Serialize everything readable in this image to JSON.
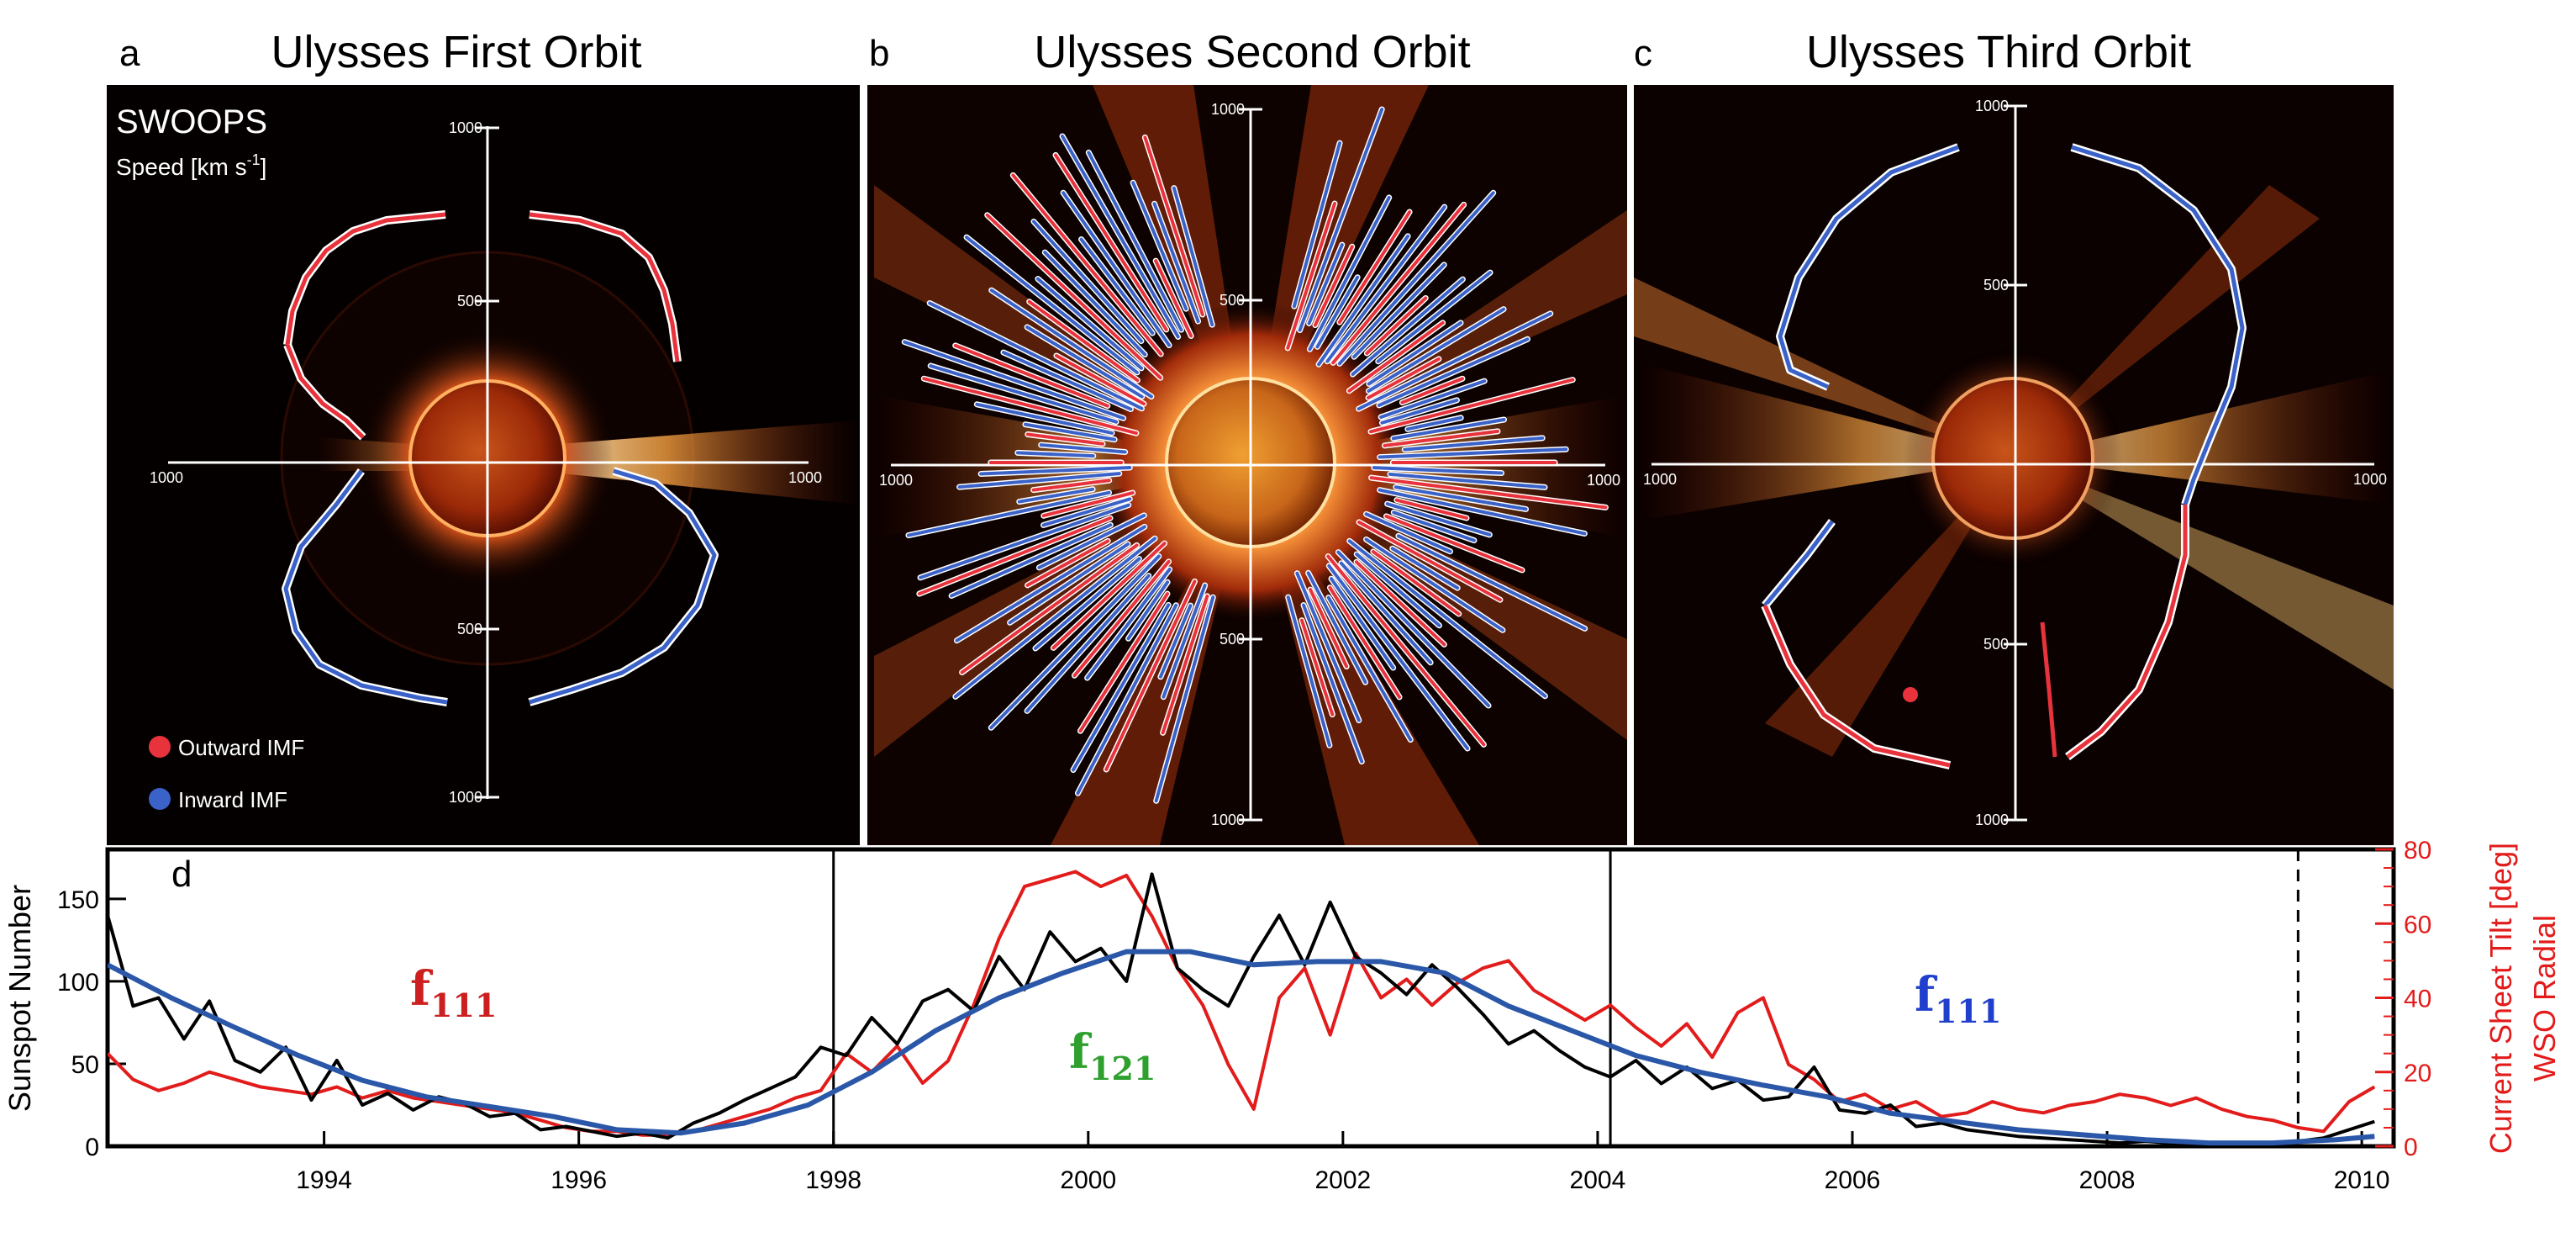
{
  "panels": [
    {
      "letter": "a",
      "title": "Ulysses First Orbit"
    },
    {
      "letter": "b",
      "title": "Ulysses Second Orbit"
    },
    {
      "letter": "c",
      "title": "Ulysses Third Orbit"
    }
  ],
  "polar": {
    "instrument": "SWOOPS",
    "speed_label": "Speed [km s",
    "speed_exp": "-1",
    "speed_close": "]",
    "tick_outer": "1000",
    "tick_inner": "500",
    "legend_outward": "Outward IMF",
    "legend_inward": "Inward IMF",
    "color_outward": "#e8323c",
    "color_inward": "#3a62c8"
  },
  "timeseries": {
    "letter": "d",
    "ylabel_left": "Sunspot Number",
    "ylabel_right_1": "Current Sheet Tilt [deg]",
    "ylabel_right_2": "WSO Radial",
    "labels": [
      {
        "base": "f",
        "sub": "111",
        "color": "#cc1f1f"
      },
      {
        "base": "f",
        "sub": "121",
        "color": "#2ea02e"
      },
      {
        "base": "f",
        "sub": "111",
        "color": "#1f3fcc"
      }
    ]
  },
  "chart_data": {
    "type": "line",
    "title": "",
    "xlabel": "",
    "xlim": [
      1992.3,
      2010.25
    ],
    "ylim_left": [
      0,
      180
    ],
    "ylim_right": [
      0,
      80
    ],
    "x_ticks": [
      1994,
      1996,
      1998,
      2000,
      2002,
      2004,
      2006,
      2008,
      2010
    ],
    "x_tick_labels": [
      "1994",
      "1996",
      "1998",
      "2000",
      "2002",
      "2004",
      "2006",
      "2008",
      "2010"
    ],
    "y_left_ticks": [
      0,
      50,
      100,
      150
    ],
    "y_left_tick_labels": [
      "0",
      "50",
      "100",
      "150"
    ],
    "y_right_ticks": [
      0,
      20,
      40,
      60,
      80
    ],
    "y_right_tick_labels": [
      "0",
      "20",
      "40",
      "60",
      "80"
    ],
    "orbit_boundaries": [
      1998.0,
      2004.1
    ],
    "dashed_marker": 2009.5,
    "series": [
      {
        "name": "Sunspot Number (monthly)",
        "axis": "left",
        "color": "#000000",
        "x": [
          1992.3,
          1992.5,
          1992.7,
          1992.9,
          1993.1,
          1993.3,
          1993.5,
          1993.7,
          1993.9,
          1994.1,
          1994.3,
          1994.5,
          1994.7,
          1994.9,
          1995.1,
          1995.3,
          1995.5,
          1995.7,
          1995.9,
          1996.1,
          1996.3,
          1996.5,
          1996.7,
          1996.9,
          1997.1,
          1997.3,
          1997.5,
          1997.7,
          1997.9,
          1998.1,
          1998.3,
          1998.5,
          1998.7,
          1998.9,
          1999.1,
          1999.3,
          1999.5,
          1999.7,
          1999.9,
          2000.1,
          2000.3,
          2000.5,
          2000.7,
          2000.9,
          2001.1,
          2001.3,
          2001.5,
          2001.7,
          2001.9,
          2002.1,
          2002.3,
          2002.5,
          2002.7,
          2002.9,
          2003.1,
          2003.3,
          2003.5,
          2003.7,
          2003.9,
          2004.1,
          2004.3,
          2004.5,
          2004.7,
          2004.9,
          2005.1,
          2005.3,
          2005.5,
          2005.7,
          2005.9,
          2006.1,
          2006.3,
          2006.5,
          2006.7,
          2006.9,
          2007.1,
          2007.3,
          2007.5,
          2007.7,
          2007.9,
          2008.1,
          2008.3,
          2008.5,
          2008.7,
          2008.9,
          2009.1,
          2009.3,
          2009.5,
          2009.7,
          2009.9,
          2010.1
        ],
        "y": [
          140,
          85,
          90,
          65,
          88,
          52,
          45,
          60,
          28,
          52,
          25,
          32,
          22,
          30,
          26,
          18,
          20,
          10,
          12,
          9,
          6,
          8,
          5,
          14,
          20,
          28,
          35,
          42,
          60,
          55,
          78,
          62,
          88,
          95,
          82,
          115,
          95,
          130,
          112,
          120,
          100,
          165,
          108,
          95,
          85,
          115,
          140,
          110,
          148,
          115,
          105,
          92,
          110,
          96,
          80,
          62,
          70,
          58,
          48,
          42,
          52,
          38,
          48,
          35,
          40,
          28,
          30,
          48,
          22,
          20,
          25,
          12,
          14,
          10,
          8,
          6,
          5,
          4,
          3,
          2,
          3,
          2,
          1,
          2,
          2,
          1,
          3,
          5,
          10,
          15
        ]
      },
      {
        "name": "Current Sheet Tilt (WSO Radial)",
        "axis": "right",
        "color": "#e21b1b",
        "x": [
          1992.3,
          1992.5,
          1992.7,
          1992.9,
          1993.1,
          1993.3,
          1993.5,
          1993.7,
          1993.9,
          1994.1,
          1994.3,
          1994.5,
          1994.7,
          1994.9,
          1995.1,
          1995.3,
          1995.5,
          1995.7,
          1995.9,
          1996.1,
          1996.3,
          1996.5,
          1996.7,
          1996.9,
          1997.1,
          1997.3,
          1997.5,
          1997.7,
          1997.9,
          1998.1,
          1998.3,
          1998.5,
          1998.7,
          1998.9,
          1999.1,
          1999.3,
          1999.5,
          1999.7,
          1999.9,
          2000.1,
          2000.3,
          2000.5,
          2000.7,
          2000.9,
          2001.1,
          2001.3,
          2001.5,
          2001.7,
          2001.9,
          2002.1,
          2002.3,
          2002.5,
          2002.7,
          2002.9,
          2003.1,
          2003.3,
          2003.5,
          2003.7,
          2003.9,
          2004.1,
          2004.3,
          2004.5,
          2004.7,
          2004.9,
          2005.1,
          2005.3,
          2005.5,
          2005.7,
          2005.9,
          2006.1,
          2006.3,
          2006.5,
          2006.7,
          2006.9,
          2007.1,
          2007.3,
          2007.5,
          2007.7,
          2007.9,
          2008.1,
          2008.3,
          2008.5,
          2008.7,
          2008.9,
          2009.1,
          2009.3,
          2009.5,
          2009.7,
          2009.9,
          2010.1
        ],
        "y": [
          25,
          18,
          15,
          17,
          20,
          18,
          16,
          15,
          14,
          16,
          13,
          15,
          13,
          12,
          11,
          10,
          9,
          7,
          5,
          4,
          4,
          3,
          3,
          4,
          6,
          8,
          10,
          13,
          15,
          25,
          20,
          27,
          17,
          23,
          38,
          56,
          70,
          72,
          74,
          70,
          73,
          62,
          48,
          38,
          22,
          10,
          40,
          48,
          30,
          52,
          40,
          45,
          38,
          44,
          48,
          50,
          42,
          38,
          34,
          38,
          32,
          27,
          33,
          24,
          36,
          40,
          22,
          18,
          12,
          14,
          10,
          12,
          8,
          9,
          12,
          10,
          9,
          11,
          12,
          14,
          13,
          11,
          13,
          10,
          8,
          7,
          5,
          4,
          12,
          16
        ]
      },
      {
        "name": "Sunspot Number (smoothed)",
        "axis": "left",
        "color": "#2b57a8",
        "x": [
          1992.3,
          1992.8,
          1993.3,
          1993.8,
          1994.3,
          1994.8,
          1995.3,
          1995.8,
          1996.3,
          1996.8,
          1997.3,
          1997.8,
          1998.3,
          1998.8,
          1999.3,
          1999.8,
          2000.3,
          2000.8,
          2001.3,
          2001.8,
          2002.3,
          2002.8,
          2003.3,
          2003.8,
          2004.3,
          2004.8,
          2005.3,
          2005.8,
          2006.3,
          2006.8,
          2007.3,
          2007.8,
          2008.3,
          2008.8,
          2009.3,
          2009.8,
          2010.1
        ],
        "y": [
          110,
          90,
          72,
          55,
          40,
          30,
          24,
          18,
          10,
          8,
          14,
          25,
          45,
          70,
          90,
          105,
          118,
          118,
          110,
          112,
          112,
          105,
          85,
          70,
          55,
          45,
          37,
          30,
          20,
          15,
          10,
          7,
          4,
          2,
          2,
          4,
          6
        ]
      }
    ]
  }
}
